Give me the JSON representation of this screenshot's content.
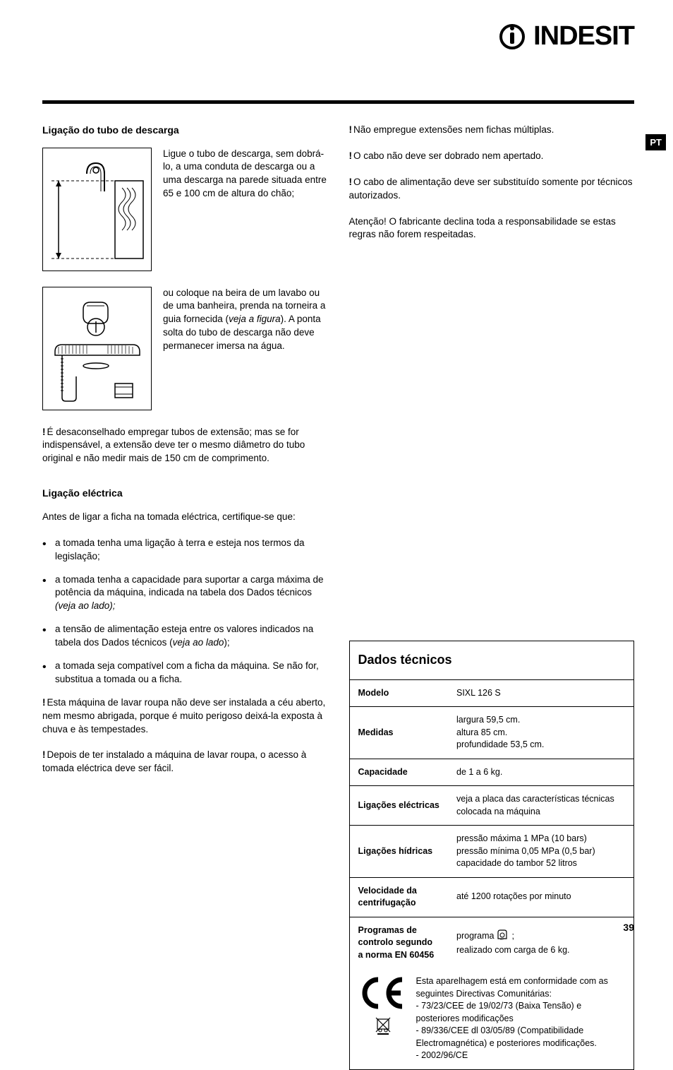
{
  "brand": "InDeSIT",
  "langBadge": "PT",
  "pageNumber": "39",
  "left": {
    "title1": "Ligação do tubo de descarga",
    "text1": "Ligue o tubo de descarga, sem dobrá-lo, a uma conduta de descarga ou a uma descarga na parede situada entre 65 e 100 cm de altura do chão;",
    "text2a": "ou coloque na beira de um lavabo ou de uma banheira, prenda na torneira a guia fornecida (",
    "text2i": "veja a figura",
    "text2b": "). A ponta solta do tubo de descarga não deve permanecer imersa na água.",
    "warn1": "É desaconselhado empregar tubos de extensão; mas se for indispensável, a extensão deve ter o mesmo diâmetro do tubo original e não medir mais de 150 cm de comprimento.",
    "title2": "Ligação eléctrica",
    "intro2": "Antes de ligar a ficha na tomada eléctrica, certifique-se que:",
    "b1": "a tomada tenha uma ligação à terra e esteja nos termos da legislação;",
    "b2a": "a tomada tenha a capacidade para suportar a carga máxima de potência da máquina, indicada na tabela dos Dados técnicos ",
    "b2i": "(veja ao lado);",
    "b3a": "a tensão de alimentação esteja entre os valores indicados na tabela dos Dados técnicos (",
    "b3i": "veja ao lado",
    "b3b": ");",
    "b4": "a tomada seja compatível com a ficha da máquina. Se não for, substitua a tomada ou a ficha.",
    "warn2": "Esta máquina de lavar roupa não deve ser instalada a céu aberto, nem mesmo abrigada, porque é muito perigoso deixá-la exposta à chuva e às tempestades.",
    "warn3": "Depois de ter instalado a máquina de lavar roupa, o acesso à tomada eléctrica deve ser fácil."
  },
  "right": {
    "w1": "Não empregue extensões nem fichas múltiplas.",
    "w2": "O cabo não deve ser dobrado nem apertado.",
    "w3": "O cabo de alimentação deve ser substituído somente por técnicos autorizados.",
    "p1": "Atenção! O fabricante declina toda a responsabilidade se estas regras não forem respeitadas."
  },
  "table": {
    "title": "Dados técnicos",
    "rows": [
      {
        "label": "Modelo",
        "value": "SIXL 126 S"
      },
      {
        "label": "Medidas",
        "value": "largura 59,5 cm.\naltura 85 cm.\nprofundidade 53,5 cm."
      },
      {
        "label": "Capacidade",
        "value": "de 1 a 6 kg."
      },
      {
        "label": "Ligações eléctricas",
        "value": "veja a placa das características técnicas colocada na máquina"
      },
      {
        "label": "Ligações hídricas",
        "value": "pressão máxima 1 MPa (10 bars)\npressão mínima 0,05 MPa (0,5 bar)\ncapacidade do tambor 52 litros"
      },
      {
        "label": "Velocidade da centrifugação",
        "value": "até 1200 rotações por minuto"
      },
      {
        "label": "Programas de controlo segundo a norma EN 60456",
        "value": "programa [icon] ;\nrealizado com carga de 6 kg."
      }
    ],
    "ceText": "Esta aparelhagem está em conformidade com as seguintes Directivas Comunitárias:\n- 73/23/CEE de 19/02/73 (Baixa Tensão) e posteriores modificações\n- 89/336/CEE dl 03/05/89 (Compatibilidade Electromagnética) e posteriores modificações.\n- 2002/96/CE"
  }
}
